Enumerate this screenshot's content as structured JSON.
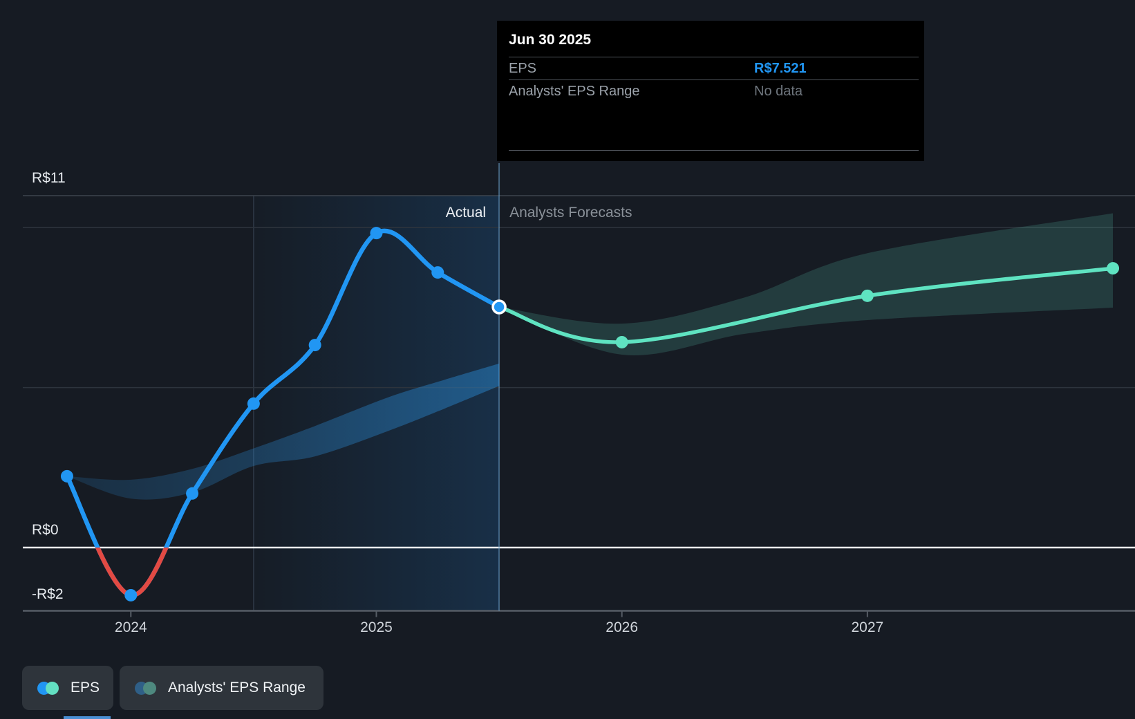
{
  "tooltip": {
    "title": "Jun 30 2025",
    "rows": [
      {
        "label": "EPS",
        "value": "R$7.521"
      },
      {
        "label": "Analysts' EPS Range",
        "value": "No data"
      }
    ]
  },
  "annotations": {
    "actual_label": "Actual",
    "forecast_label": "Analysts Forecasts"
  },
  "legend": [
    {
      "label": "EPS",
      "dot_colors": [
        "#2196f3",
        "#63e0c2"
      ]
    },
    {
      "label": "Analysts' EPS Range",
      "dot_colors": [
        "#2f5f87",
        "#4e897f"
      ]
    }
  ],
  "colors": {
    "background": "#161b23",
    "eps_actual": "#2196f3",
    "eps_negative": "#e24a43",
    "eps_forecast": "#5fe3c1",
    "tooltip_value_accent": "#2196f3",
    "zero_line": "#eef1f4",
    "gridline_top": "#3d444e",
    "gridline": "#2d343d",
    "axis_line": "#565d66",
    "divider": "rgba(108,158,200,0.55)",
    "highlight_edge": "rgba(140,175,210,0.20)",
    "highlight_from": "rgba(30,110,185,0.02)",
    "highlight_to": "rgba(30,120,200,0.22)",
    "actual_band_from": "rgba(45,150,230,0.16)",
    "actual_band_to": "rgba(45,150,230,0.42)",
    "forecast_band": "rgba(100,225,195,0.17)"
  },
  "chart_data": {
    "type": "line",
    "title": "",
    "currency": "R$",
    "x_range": [
      2023.56,
      2028.09
    ],
    "x_ticks": [
      {
        "label": "2024",
        "year": 2024
      },
      {
        "label": "2025",
        "year": 2025
      },
      {
        "label": "2026",
        "year": 2026
      },
      {
        "label": "2027",
        "year": 2027
      }
    ],
    "y_axis_labels": [
      {
        "text": "R$11",
        "value": 11
      },
      {
        "text": "R$0",
        "value": 0
      },
      {
        "text": "-R$2",
        "value": -2
      }
    ],
    "gridline_values": [
      11,
      10,
      5
    ],
    "zero_value": 0,
    "today": 2025.5,
    "highlight_window": [
      2024.5,
      2025.5
    ],
    "series": [
      {
        "name": "EPS actual",
        "points": [
          [
            2023.74,
            2.23
          ],
          [
            2024.0,
            -1.49
          ],
          [
            2024.25,
            1.69
          ],
          [
            2024.5,
            4.5
          ],
          [
            2024.75,
            6.33
          ],
          [
            2025.0,
            9.83
          ],
          [
            2025.25,
            8.6
          ],
          [
            2025.5,
            7.521
          ]
        ]
      },
      {
        "name": "EPS forecast",
        "points": [
          [
            2025.5,
            7.521
          ],
          [
            2026.0,
            6.42
          ],
          [
            2027.0,
            7.87
          ],
          [
            2028.0,
            8.73
          ]
        ]
      }
    ],
    "bands": [
      {
        "name": "actual range band",
        "points": [
          [
            2023.74,
            2.23,
            2.23
          ],
          [
            2024.0,
            2.12,
            1.53
          ],
          [
            2024.25,
            2.46,
            1.72
          ],
          [
            2024.5,
            3.1,
            2.55
          ],
          [
            2024.75,
            3.8,
            2.85
          ],
          [
            2025.05,
            4.7,
            3.65
          ],
          [
            2025.28,
            5.25,
            4.35
          ],
          [
            2025.5,
            5.75,
            5.05
          ]
        ]
      },
      {
        "name": "forecast range band",
        "points": [
          [
            2025.5,
            7.521,
            7.521
          ],
          [
            2026.0,
            7.0,
            6.03
          ],
          [
            2026.5,
            7.82,
            6.68
          ],
          [
            2027.0,
            9.2,
            7.11
          ],
          [
            2028.0,
            10.45,
            7.5
          ]
        ]
      }
    ]
  }
}
